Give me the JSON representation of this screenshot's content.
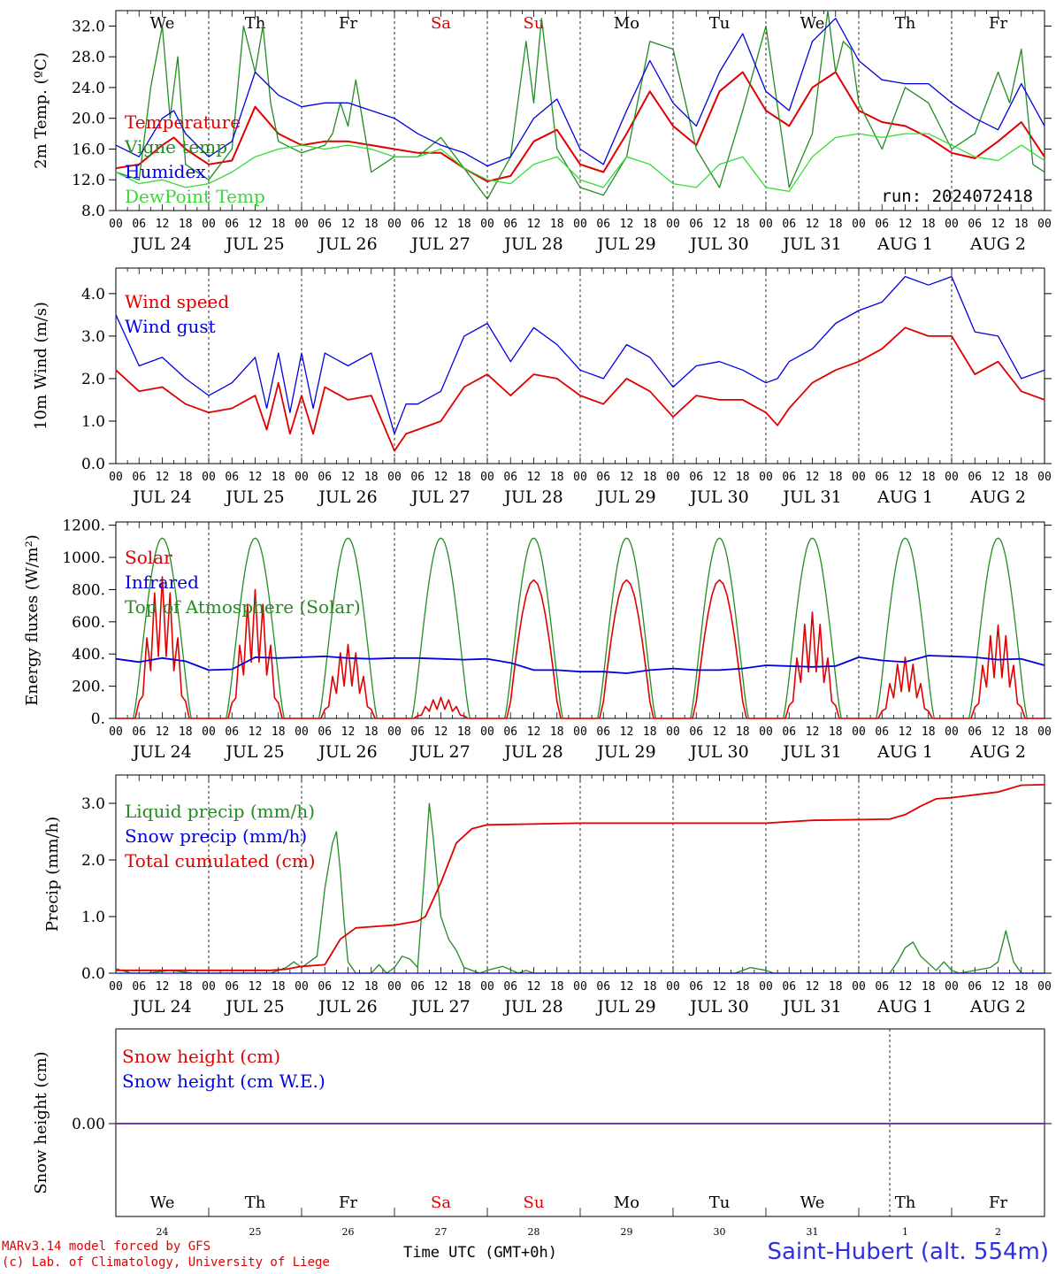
{
  "footer": {
    "model": "MARv3.14 model forced by GFS",
    "credit": "(c) Lab. of Climatology, University of Liege",
    "time_label": "Time UTC (GMT+0h)",
    "station": "Saint-Hubert (alt. 554m)"
  },
  "colors": {
    "red": "#e00000",
    "green": "#228b22",
    "blue": "#0000e0",
    "lightgreen": "#33dd33",
    "purple": "#7a3aa8",
    "weekend": "#e00000"
  },
  "weekday_labels": [
    "We",
    "Th",
    "Fr",
    "Sa",
    "Su",
    "Mo",
    "Tu",
    "We",
    "Th",
    "Fr"
  ],
  "weekend_days": [
    "Sa",
    "Su"
  ],
  "date_labels": [
    "JUL 24",
    "JUL 25",
    "JUL 26",
    "JUL 27",
    "JUL 28",
    "JUL 29",
    "JUL 30",
    "JUL 31",
    "AUG  1",
    "AUG  2"
  ],
  "hour_labels": [
    "00",
    "06",
    "12",
    "18"
  ],
  "bottom_day_numbers": [
    "24",
    "25",
    "26",
    "27",
    "28",
    "29",
    "30",
    "31",
    "1",
    "2"
  ],
  "chart_data": [
    {
      "type": "line",
      "ylabel": "2m Temp. (ºC)",
      "ylim": [
        8,
        34
      ],
      "yticks": [
        8,
        12,
        16,
        20,
        24,
        28,
        32
      ],
      "ytick_labels": [
        "8.0",
        "12.0",
        "16.0",
        "20.0",
        "24.0",
        "28.0",
        "32.0"
      ],
      "annotation": "run: 2024072418",
      "x_unit": "hours from Jul 24 00 UTC",
      "xlim": [
        0,
        240
      ],
      "series": [
        {
          "name": "Temperature",
          "color": "red",
          "x": [
            0,
            6,
            12,
            15,
            18,
            24,
            30,
            36,
            42,
            48,
            54,
            60,
            66,
            72,
            78,
            84,
            90,
            96,
            102,
            108,
            114,
            120,
            126,
            132,
            138,
            144,
            150,
            156,
            162,
            168,
            174,
            180,
            186,
            192,
            198,
            204,
            210,
            216,
            222,
            228,
            234,
            240
          ],
          "y": [
            13.5,
            14,
            16.5,
            17.5,
            16,
            14,
            14.5,
            21.5,
            18,
            16.5,
            17,
            17,
            16.5,
            16,
            15.5,
            15.5,
            13.5,
            11.8,
            12.5,
            17,
            18.5,
            14,
            13,
            18,
            23.5,
            19,
            16.5,
            23.5,
            26,
            21,
            19,
            24,
            26,
            21,
            19.5,
            19,
            17.5,
            15.5,
            14.8,
            17,
            19.5,
            15
          ]
        },
        {
          "name": "Vigne temp",
          "color": "green",
          "x": [
            0,
            6,
            9,
            12,
            14,
            16,
            18,
            24,
            30,
            33,
            36,
            38,
            40,
            42,
            48,
            54,
            56,
            58,
            60,
            62,
            64,
            66,
            72,
            78,
            84,
            90,
            96,
            102,
            106,
            108,
            110,
            114,
            120,
            126,
            132,
            138,
            144,
            150,
            156,
            162,
            168,
            174,
            180,
            184,
            186,
            188,
            190,
            192,
            198,
            204,
            210,
            216,
            222,
            228,
            231,
            234,
            237,
            240
          ],
          "y": [
            13,
            12,
            24,
            32,
            20,
            28,
            14,
            12,
            16,
            32,
            26,
            32,
            22,
            17,
            15.5,
            16.5,
            18,
            22,
            19,
            25,
            19,
            13,
            15,
            15,
            17.5,
            13.5,
            9.5,
            15,
            30,
            22,
            33,
            16,
            11,
            10,
            15,
            30,
            29,
            16,
            11,
            21,
            32,
            11,
            18,
            34,
            26,
            30,
            29,
            22,
            16,
            24,
            22,
            16,
            18,
            26,
            22,
            29,
            14,
            13
          ]
        },
        {
          "name": "Humidex",
          "color": "blue",
          "x": [
            0,
            6,
            12,
            15,
            18,
            24,
            30,
            36,
            42,
            48,
            54,
            60,
            66,
            72,
            78,
            84,
            90,
            96,
            102,
            108,
            114,
            120,
            126,
            132,
            138,
            144,
            150,
            156,
            162,
            168,
            174,
            180,
            186,
            192,
            198,
            204,
            210,
            216,
            222,
            228,
            234,
            240
          ],
          "y": [
            16.5,
            15,
            20,
            21,
            18,
            15,
            17,
            26,
            23,
            21.5,
            22,
            22,
            21,
            20,
            18,
            16.5,
            15.5,
            13.8,
            15,
            20,
            22.5,
            16,
            14,
            21,
            27.5,
            22,
            19,
            26,
            31,
            23.5,
            21,
            30,
            33,
            27.5,
            25,
            24.5,
            24.5,
            22,
            20,
            18.5,
            24.5,
            19
          ]
        },
        {
          "name": "DewPoint Temp",
          "color": "lightgreen",
          "x": [
            0,
            6,
            12,
            18,
            24,
            30,
            36,
            42,
            48,
            54,
            60,
            66,
            72,
            78,
            84,
            90,
            96,
            102,
            108,
            114,
            120,
            126,
            132,
            138,
            144,
            150,
            156,
            162,
            168,
            174,
            180,
            186,
            192,
            198,
            204,
            210,
            216,
            222,
            228,
            234,
            240
          ],
          "y": [
            13,
            11.5,
            12,
            11,
            11.5,
            13,
            15,
            16,
            16.5,
            16,
            16.5,
            16,
            15,
            15,
            16,
            13.5,
            12,
            11.5,
            14,
            15,
            12,
            11,
            15,
            14,
            11.5,
            11,
            14,
            15,
            11,
            10.5,
            15,
            17.5,
            18,
            17.5,
            18,
            18,
            16.5,
            15,
            14.5,
            16.5,
            14.5
          ]
        }
      ]
    },
    {
      "type": "line",
      "ylabel": "10m Wind (m/s)",
      "ylim": [
        0,
        4.6
      ],
      "yticks": [
        0,
        1,
        2,
        3,
        4
      ],
      "ytick_labels": [
        "0.0",
        "1.0",
        "2.0",
        "3.0",
        "4.0"
      ],
      "x_unit": "hours from Jul 24 00 UTC",
      "xlim": [
        0,
        240
      ],
      "series": [
        {
          "name": "Wind speed",
          "color": "red",
          "x": [
            0,
            6,
            12,
            18,
            24,
            30,
            36,
            39,
            42,
            45,
            48,
            51,
            54,
            60,
            66,
            72,
            75,
            78,
            84,
            90,
            96,
            102,
            108,
            114,
            120,
            126,
            132,
            138,
            144,
            150,
            156,
            162,
            168,
            171,
            174,
            180,
            186,
            192,
            198,
            204,
            210,
            216,
            222,
            228,
            234,
            240
          ],
          "y": [
            2.2,
            1.7,
            1.8,
            1.4,
            1.2,
            1.3,
            1.6,
            0.8,
            1.9,
            0.7,
            1.6,
            0.7,
            1.8,
            1.5,
            1.6,
            0.3,
            0.7,
            0.8,
            1.0,
            1.8,
            2.1,
            1.6,
            2.1,
            2.0,
            1.6,
            1.4,
            2.0,
            1.7,
            1.1,
            1.6,
            1.5,
            1.5,
            1.2,
            0.9,
            1.3,
            1.9,
            2.2,
            2.4,
            2.7,
            3.2,
            3.0,
            3.0,
            2.1,
            2.4,
            1.7,
            1.5
          ]
        },
        {
          "name": "Wind gust",
          "color": "blue",
          "x": [
            0,
            6,
            12,
            18,
            24,
            30,
            36,
            39,
            42,
            45,
            48,
            51,
            54,
            60,
            66,
            72,
            75,
            78,
            84,
            90,
            96,
            102,
            108,
            114,
            120,
            126,
            132,
            138,
            144,
            150,
            156,
            162,
            168,
            171,
            174,
            180,
            186,
            192,
            198,
            204,
            210,
            216,
            222,
            228,
            234,
            240
          ],
          "y": [
            3.5,
            2.3,
            2.5,
            2.0,
            1.6,
            1.9,
            2.5,
            1.3,
            2.6,
            1.2,
            2.6,
            1.3,
            2.6,
            2.3,
            2.6,
            0.7,
            1.4,
            1.4,
            1.7,
            3.0,
            3.3,
            2.4,
            3.2,
            2.8,
            2.2,
            2.0,
            2.8,
            2.5,
            1.8,
            2.3,
            2.4,
            2.2,
            1.9,
            2.0,
            2.4,
            2.7,
            3.3,
            3.6,
            3.8,
            4.4,
            4.2,
            4.4,
            3.1,
            3.0,
            2.0,
            2.2
          ]
        }
      ]
    },
    {
      "type": "line",
      "ylabel": "Energy fluxes (W/m²)",
      "ylim": [
        0,
        1220
      ],
      "yticks": [
        0,
        200,
        400,
        600,
        800,
        1000,
        1200
      ],
      "ytick_labels": [
        "0.",
        "200.",
        "400.",
        "600.",
        "800.",
        "1000.",
        "1200."
      ],
      "x_unit": "hours from Jul 24 00 UTC",
      "xlim": [
        0,
        240
      ],
      "toa_peak": 1120,
      "toa_hours": [
        4.5,
        19.5
      ],
      "solar_day_peaks": [
        880,
        800,
        460,
        130,
        860,
        860,
        860,
        660,
        380,
        580
      ],
      "series": [
        {
          "name": "Solar",
          "color": "red"
        },
        {
          "name": "Infrared",
          "color": "blue",
          "x": [
            0,
            6,
            12,
            18,
            24,
            30,
            36,
            42,
            48,
            54,
            60,
            66,
            72,
            78,
            84,
            90,
            96,
            102,
            108,
            114,
            120,
            126,
            132,
            138,
            144,
            150,
            156,
            162,
            168,
            174,
            180,
            186,
            192,
            198,
            204,
            210,
            216,
            222,
            228,
            234,
            240
          ],
          "y": [
            370,
            350,
            375,
            355,
            300,
            305,
            380,
            375,
            380,
            385,
            375,
            370,
            375,
            375,
            370,
            365,
            370,
            345,
            300,
            300,
            290,
            290,
            280,
            300,
            310,
            300,
            300,
            310,
            330,
            325,
            320,
            325,
            380,
            360,
            350,
            390,
            385,
            380,
            365,
            370,
            330
          ]
        },
        {
          "name": "Top of Atmosphere (Solar)",
          "color": "green"
        }
      ]
    },
    {
      "type": "line",
      "ylabel": "Precip (mm/h)",
      "ylim": [
        0,
        3.5
      ],
      "yticks": [
        0,
        1,
        2,
        3
      ],
      "ytick_labels": [
        "0.0",
        "1.0",
        "2.0",
        "3.0"
      ],
      "x_unit": "hours from Jul 24 00 UTC",
      "xlim": [
        0,
        240
      ],
      "series": [
        {
          "name": "Liquid precip (mm/h)",
          "color": "green",
          "x": [
            0,
            4,
            8,
            14,
            20,
            30,
            40,
            44,
            46,
            48,
            52,
            54,
            56,
            57,
            58,
            59,
            60,
            62,
            66,
            68,
            70,
            72,
            74,
            76,
            78,
            80,
            81,
            82,
            84,
            86,
            88,
            90,
            94,
            96,
            100,
            104,
            106,
            108,
            160,
            164,
            168,
            170,
            200,
            202,
            204,
            206,
            208,
            212,
            214,
            216,
            218,
            226,
            228,
            230,
            232,
            234,
            236,
            240
          ],
          "y": [
            0.08,
            0.0,
            0.0,
            0.05,
            0.0,
            0.0,
            0.0,
            0.1,
            0.2,
            0.1,
            0.3,
            1.5,
            2.3,
            2.5,
            1.8,
            0.9,
            0.2,
            0.0,
            0.0,
            0.15,
            0.0,
            0.1,
            0.3,
            0.25,
            0.1,
            2.0,
            3.0,
            2.4,
            1.0,
            0.6,
            0.4,
            0.1,
            0.0,
            0.05,
            0.12,
            0.0,
            0.05,
            0.0,
            0.0,
            0.1,
            0.05,
            0.0,
            0.0,
            0.2,
            0.45,
            0.55,
            0.3,
            0.05,
            0.2,
            0.05,
            0.0,
            0.1,
            0.2,
            0.75,
            0.2,
            0.0,
            0.0,
            0.0
          ]
        },
        {
          "name": "Snow precip (mm/h)",
          "color": "blue",
          "x": [
            0,
            240
          ],
          "y": [
            0,
            0
          ]
        },
        {
          "name": "Total cumulated (cm)",
          "color": "red",
          "x": [
            0,
            20,
            40,
            44,
            48,
            54,
            58,
            62,
            66,
            72,
            78,
            80,
            84,
            88,
            92,
            96,
            120,
            168,
            180,
            200,
            204,
            208,
            212,
            216,
            228,
            234,
            240
          ],
          "y": [
            0.05,
            0.05,
            0.05,
            0.07,
            0.12,
            0.15,
            0.6,
            0.8,
            0.82,
            0.85,
            0.92,
            1.0,
            1.6,
            2.3,
            2.55,
            2.62,
            2.65,
            2.65,
            2.7,
            2.72,
            2.8,
            2.95,
            3.08,
            3.1,
            3.2,
            3.32,
            3.33
          ]
        }
      ]
    },
    {
      "type": "line",
      "ylabel": "Snow height (cm)",
      "ytick_labels": [
        "0.00"
      ],
      "x_unit": "hours from Jul 24 00 UTC",
      "xlim": [
        0,
        240
      ],
      "series": [
        {
          "name": "Snow height (cm)",
          "color": "red",
          "x": [
            0,
            240
          ],
          "y": [
            0,
            0
          ]
        },
        {
          "name": "Snow height (cm W.E.)",
          "color": "blue",
          "x": [
            0,
            240
          ],
          "y": [
            0,
            0
          ]
        }
      ]
    }
  ]
}
